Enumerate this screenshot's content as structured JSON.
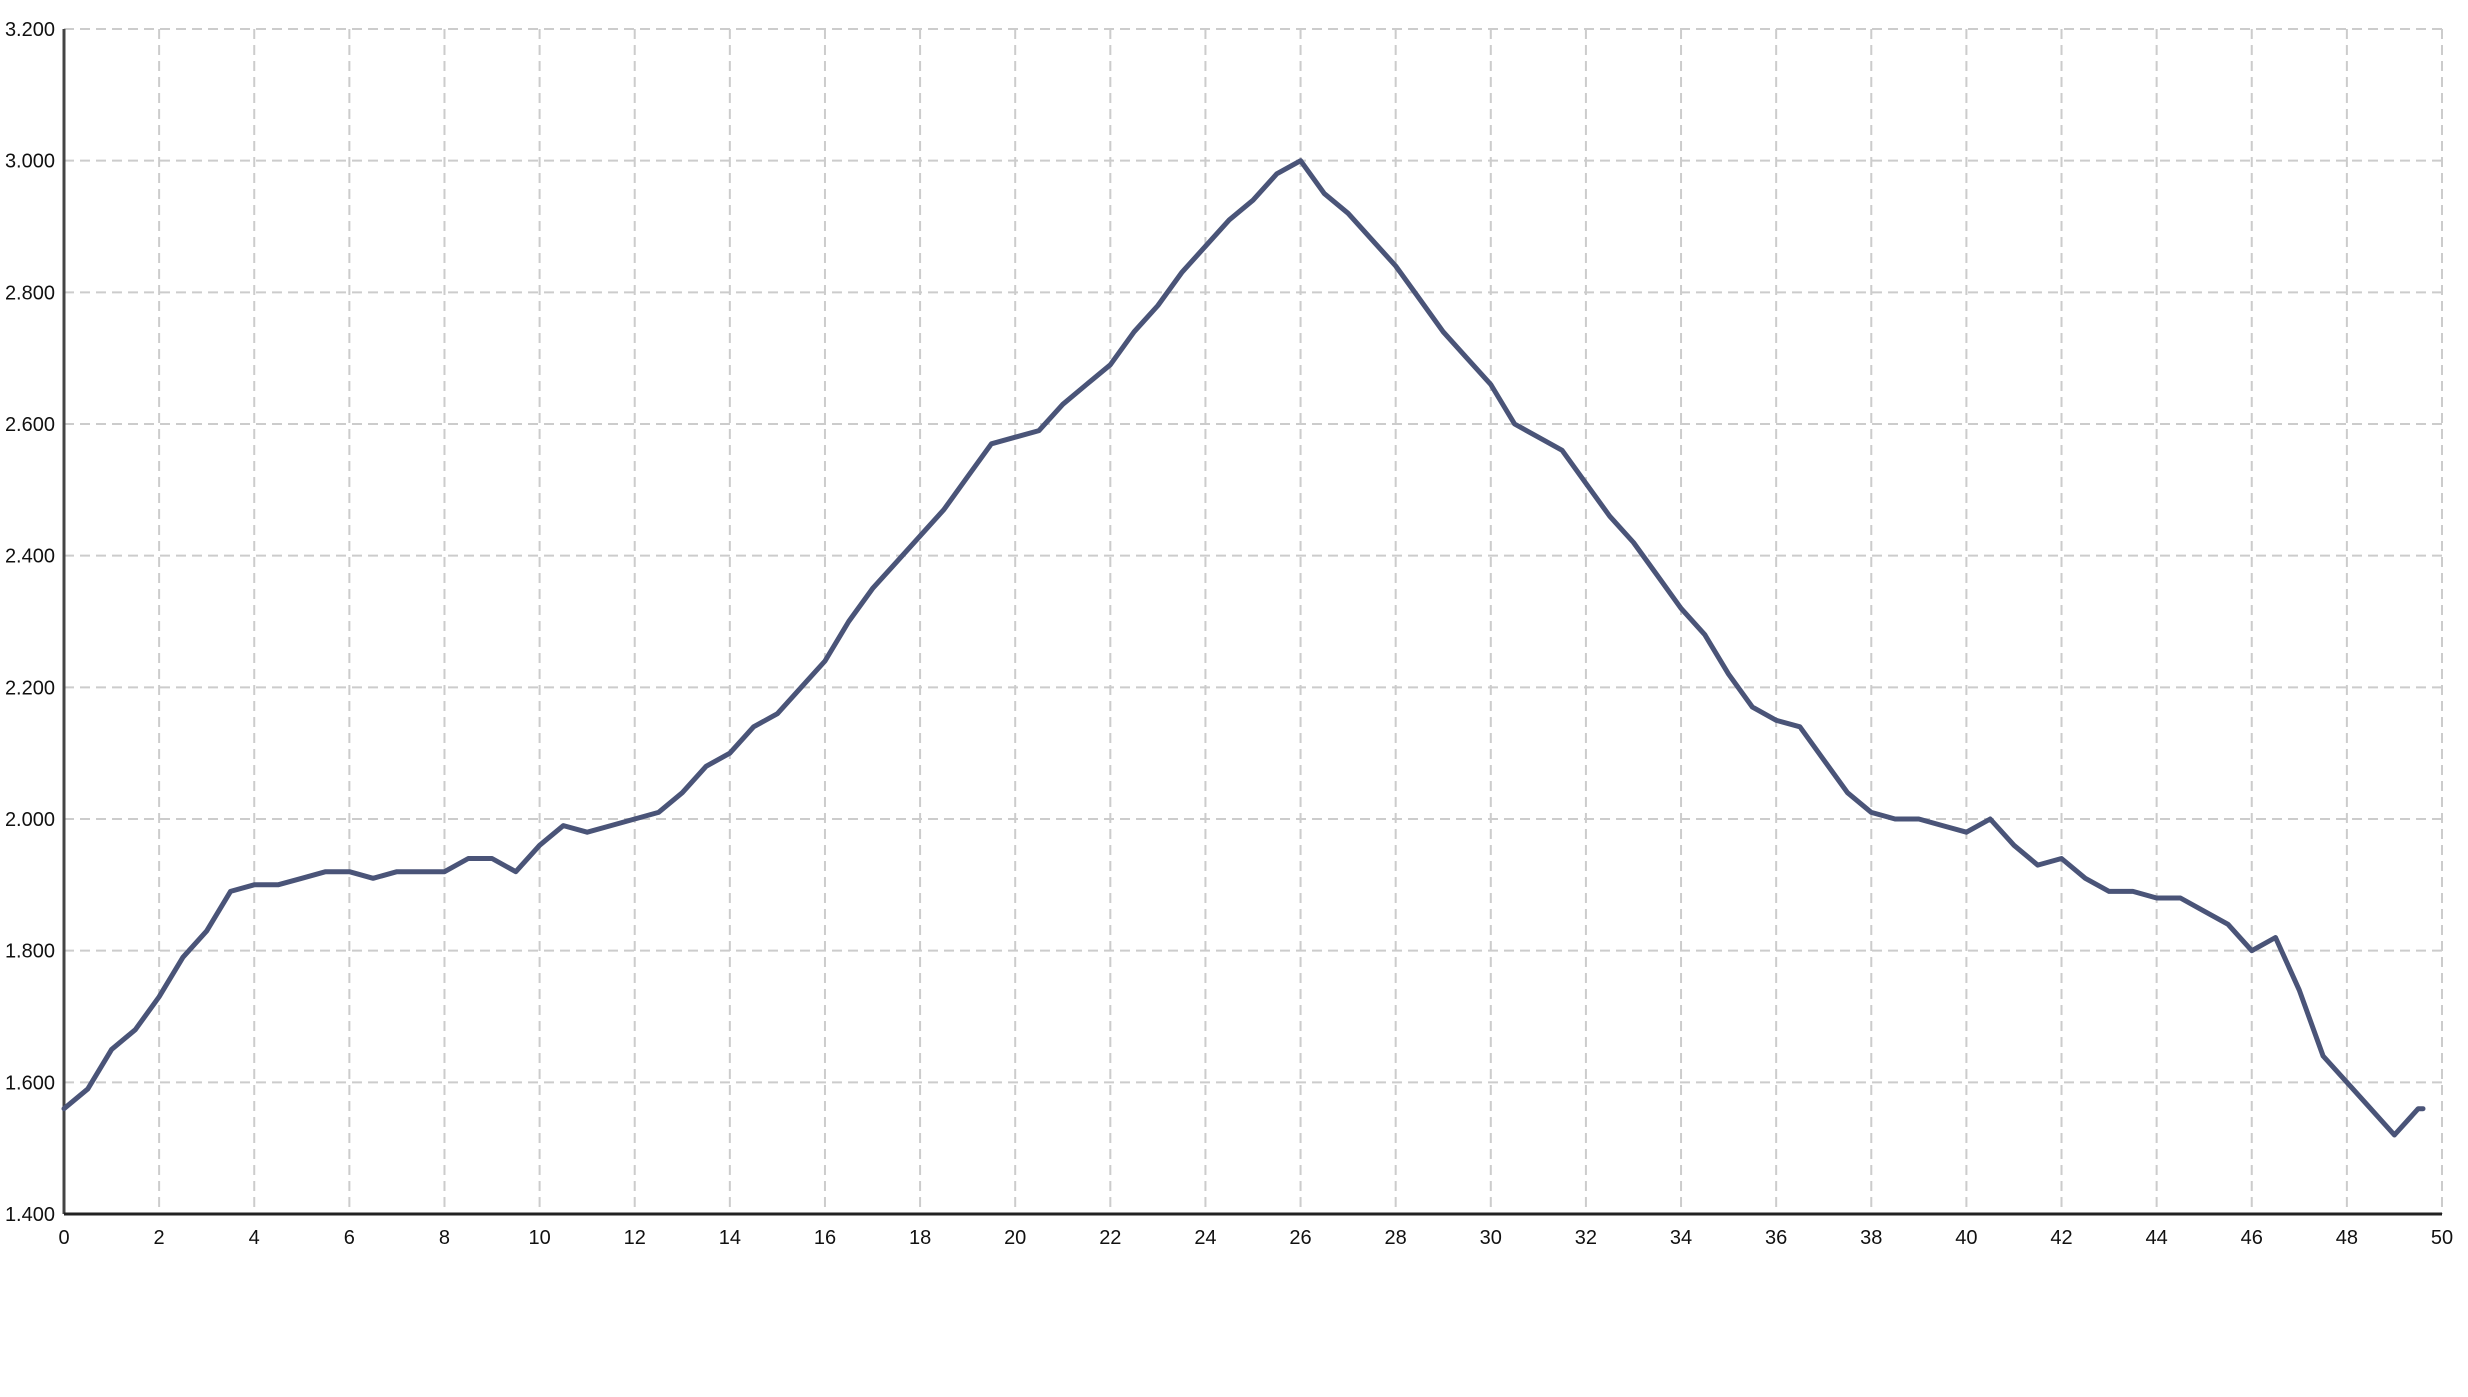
{
  "chart_data": {
    "type": "line",
    "title": "",
    "xlabel": "",
    "ylabel": "",
    "xlim": [
      0,
      50
    ],
    "ylim": [
      1.4,
      3.2
    ],
    "grid": true,
    "legend": "none",
    "line_color": "#4a5478",
    "x_ticks": [
      "0",
      "2",
      "4",
      "6",
      "8",
      "10",
      "12",
      "14",
      "16",
      "18",
      "20",
      "22",
      "24",
      "26",
      "28",
      "30",
      "32",
      "34",
      "36",
      "38",
      "40",
      "42",
      "44",
      "46",
      "48",
      "50"
    ],
    "y_ticks": [
      "1.400",
      "1.600",
      "1.800",
      "2.000",
      "2.200",
      "2.400",
      "2.600",
      "2.800",
      "3.000",
      "3.200"
    ],
    "series": [
      {
        "x": [
          0,
          0.5,
          1,
          1.5,
          2,
          2.5,
          3,
          3.5,
          4,
          4.5,
          5,
          5.5,
          6,
          6.5,
          7,
          7.5,
          8,
          8.5,
          9,
          9.5,
          10,
          10.5,
          11,
          11.5,
          12,
          12.5,
          13,
          13.5,
          14,
          14.5,
          15,
          15.5,
          16,
          16.5,
          17,
          17.5,
          18,
          18.5,
          19,
          19.5,
          20,
          20.5,
          21,
          21.5,
          22,
          22.5,
          23,
          23.5,
          24,
          24.5,
          25,
          25.5,
          26,
          26.5,
          27,
          27.5,
          28,
          28.5,
          29,
          29.5,
          30,
          30.5,
          31,
          31.5,
          32,
          32.5,
          33,
          33.5,
          34,
          34.5,
          35,
          35.5,
          36,
          36.5,
          37,
          37.5,
          38,
          38.5,
          39,
          39.5,
          40,
          40.5,
          41,
          41.5,
          42,
          42.5,
          43,
          43.5,
          44,
          44.5,
          45,
          45.5,
          46,
          46.5,
          47,
          47.5,
          48,
          48.5,
          49,
          49.5,
          49.6
        ],
        "y": [
          1.56,
          1.59,
          1.65,
          1.68,
          1.73,
          1.79,
          1.83,
          1.89,
          1.9,
          1.9,
          1.91,
          1.92,
          1.92,
          1.91,
          1.92,
          1.92,
          1.92,
          1.94,
          1.94,
          1.92,
          1.96,
          1.99,
          1.98,
          1.99,
          2.0,
          2.01,
          2.04,
          2.08,
          2.1,
          2.14,
          2.16,
          2.2,
          2.24,
          2.3,
          2.35,
          2.39,
          2.43,
          2.47,
          2.52,
          2.57,
          2.58,
          2.59,
          2.63,
          2.66,
          2.69,
          2.74,
          2.78,
          2.83,
          2.87,
          2.91,
          2.94,
          2.98,
          3.0,
          2.95,
          2.92,
          2.88,
          2.84,
          2.79,
          2.74,
          2.7,
          2.66,
          2.6,
          2.58,
          2.56,
          2.51,
          2.46,
          2.42,
          2.37,
          2.32,
          2.28,
          2.22,
          2.17,
          2.15,
          2.14,
          2.09,
          2.04,
          2.01,
          2.0,
          2.0,
          1.99,
          1.98,
          2.0,
          1.96,
          1.93,
          1.94,
          1.91,
          1.89,
          1.89,
          1.88,
          1.88,
          1.86,
          1.84,
          1.8,
          1.82,
          1.74,
          1.64,
          1.6,
          1.56,
          1.52,
          1.56,
          1.56
        ]
      }
    ]
  }
}
